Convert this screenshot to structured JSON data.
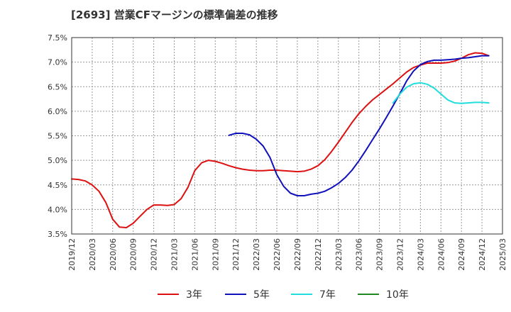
{
  "title": "[2693]  営業CFマージンの標準偏差の推移",
  "chart_data": {
    "type": "line",
    "title": "[2693]  営業CFマージンの標準偏差の推移",
    "xlabel": "",
    "ylabel": "",
    "x_ticks": [
      "2019/12",
      "2020/03",
      "2020/06",
      "2020/09",
      "2020/12",
      "2021/03",
      "2021/06",
      "2021/09",
      "2021/12",
      "2022/03",
      "2022/06",
      "2022/09",
      "2022/12",
      "2023/03",
      "2023/06",
      "2023/09",
      "2023/12",
      "2024/03",
      "2024/06",
      "2024/09",
      "2024/12",
      "2025/03"
    ],
    "y_ticks": [
      "3.5%",
      "4.0%",
      "4.5%",
      "5.0%",
      "5.5%",
      "6.0%",
      "6.5%",
      "7.0%",
      "7.5%"
    ],
    "ylim": [
      3.5,
      7.5
    ],
    "grid": true,
    "legend_position": "bottom",
    "series": [
      {
        "name": "3年",
        "color": "#dd1111",
        "points": [
          [
            "2019/12",
            4.62
          ],
          [
            "2020/01",
            4.61
          ],
          [
            "2020/02",
            4.58
          ],
          [
            "2020/03",
            4.5
          ],
          [
            "2020/04",
            4.37
          ],
          [
            "2020/05",
            4.14
          ],
          [
            "2020/06",
            3.8
          ],
          [
            "2020/07",
            3.64
          ],
          [
            "2020/08",
            3.63
          ],
          [
            "2020/09",
            3.72
          ],
          [
            "2020/10",
            3.86
          ],
          [
            "2020/11",
            4.0
          ],
          [
            "2020/12",
            4.09
          ],
          [
            "2021/01",
            4.09
          ],
          [
            "2021/02",
            4.08
          ],
          [
            "2021/03",
            4.1
          ],
          [
            "2021/04",
            4.22
          ],
          [
            "2021/05",
            4.45
          ],
          [
            "2021/06",
            4.79
          ],
          [
            "2021/07",
            4.95
          ],
          [
            "2021/08",
            5.0
          ],
          [
            "2021/09",
            4.98
          ],
          [
            "2021/10",
            4.94
          ],
          [
            "2021/11",
            4.89
          ],
          [
            "2021/12",
            4.85
          ],
          [
            "2022/01",
            4.82
          ],
          [
            "2022/02",
            4.8
          ],
          [
            "2022/03",
            4.79
          ],
          [
            "2022/04",
            4.79
          ],
          [
            "2022/05",
            4.8
          ],
          [
            "2022/06",
            4.8
          ],
          [
            "2022/07",
            4.79
          ],
          [
            "2022/08",
            4.78
          ],
          [
            "2022/09",
            4.77
          ],
          [
            "2022/10",
            4.78
          ],
          [
            "2022/11",
            4.82
          ],
          [
            "2022/12",
            4.89
          ],
          [
            "2023/01",
            5.01
          ],
          [
            "2023/02",
            5.18
          ],
          [
            "2023/03",
            5.37
          ],
          [
            "2023/04",
            5.57
          ],
          [
            "2023/05",
            5.77
          ],
          [
            "2023/06",
            5.95
          ],
          [
            "2023/07",
            6.1
          ],
          [
            "2023/08",
            6.23
          ],
          [
            "2023/09",
            6.34
          ],
          [
            "2023/10",
            6.45
          ],
          [
            "2023/11",
            6.56
          ],
          [
            "2023/12",
            6.68
          ],
          [
            "2024/01",
            6.8
          ],
          [
            "2024/02",
            6.89
          ],
          [
            "2024/03",
            6.94
          ],
          [
            "2024/04",
            6.98
          ],
          [
            "2024/05",
            6.98
          ],
          [
            "2024/06",
            6.98
          ],
          [
            "2024/07",
            6.99
          ],
          [
            "2024/08",
            7.02
          ],
          [
            "2024/09",
            7.08
          ],
          [
            "2024/10",
            7.15
          ],
          [
            "2024/11",
            7.19
          ],
          [
            "2024/12",
            7.18
          ],
          [
            "2025/01",
            7.13
          ]
        ]
      },
      {
        "name": "5年",
        "color": "#1111bb",
        "points": [
          [
            "2021/11",
            5.51
          ],
          [
            "2021/12",
            5.55
          ],
          [
            "2022/01",
            5.55
          ],
          [
            "2022/02",
            5.52
          ],
          [
            "2022/03",
            5.43
          ],
          [
            "2022/04",
            5.29
          ],
          [
            "2022/05",
            5.06
          ],
          [
            "2022/06",
            4.71
          ],
          [
            "2022/07",
            4.47
          ],
          [
            "2022/08",
            4.33
          ],
          [
            "2022/09",
            4.28
          ],
          [
            "2022/10",
            4.28
          ],
          [
            "2022/11",
            4.31
          ],
          [
            "2022/12",
            4.33
          ],
          [
            "2023/01",
            4.37
          ],
          [
            "2023/02",
            4.44
          ],
          [
            "2023/03",
            4.53
          ],
          [
            "2023/04",
            4.65
          ],
          [
            "2023/05",
            4.8
          ],
          [
            "2023/06",
            4.99
          ],
          [
            "2023/07",
            5.2
          ],
          [
            "2023/08",
            5.42
          ],
          [
            "2023/09",
            5.64
          ],
          [
            "2023/10",
            5.87
          ],
          [
            "2023/11",
            6.11
          ],
          [
            "2023/12",
            6.36
          ],
          [
            "2024/01",
            6.62
          ],
          [
            "2024/02",
            6.82
          ],
          [
            "2024/03",
            6.95
          ],
          [
            "2024/04",
            7.01
          ],
          [
            "2024/05",
            7.04
          ],
          [
            "2024/06",
            7.04
          ],
          [
            "2024/07",
            7.05
          ],
          [
            "2024/08",
            7.06
          ],
          [
            "2024/09",
            7.08
          ],
          [
            "2024/10",
            7.09
          ],
          [
            "2024/11",
            7.11
          ],
          [
            "2024/12",
            7.13
          ],
          [
            "2025/01",
            7.13
          ]
        ]
      },
      {
        "name": "7年",
        "color": "#22dddd",
        "points": [
          [
            "2023/11",
            6.17
          ],
          [
            "2023/12",
            6.35
          ],
          [
            "2024/01",
            6.49
          ],
          [
            "2024/02",
            6.56
          ],
          [
            "2024/03",
            6.58
          ],
          [
            "2024/04",
            6.55
          ],
          [
            "2024/05",
            6.47
          ],
          [
            "2024/06",
            6.35
          ],
          [
            "2024/07",
            6.23
          ],
          [
            "2024/08",
            6.17
          ],
          [
            "2024/09",
            6.16
          ],
          [
            "2024/10",
            6.17
          ],
          [
            "2024/11",
            6.18
          ],
          [
            "2024/12",
            6.18
          ],
          [
            "2025/01",
            6.17
          ]
        ]
      },
      {
        "name": "10年",
        "color": "#228822",
        "points": []
      }
    ]
  }
}
